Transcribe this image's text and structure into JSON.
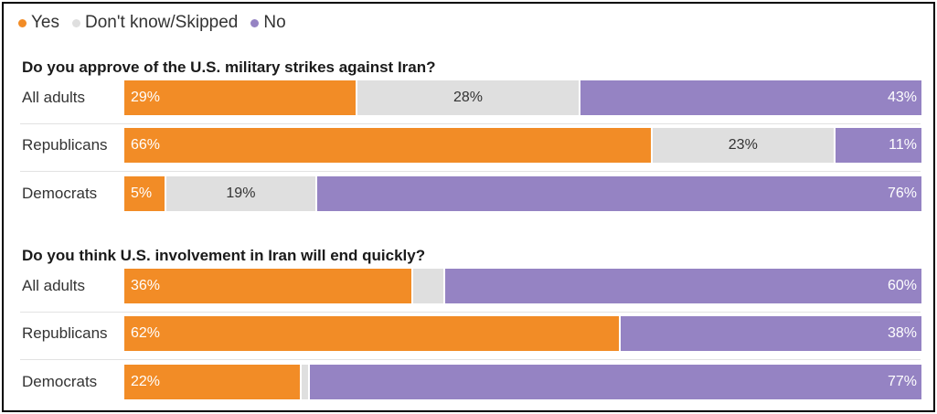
{
  "legend": [
    {
      "label": "Yes",
      "color": "#f28c26"
    },
    {
      "label": "Don't know/Skipped",
      "color": "#dfdfdf"
    },
    {
      "label": "No",
      "color": "#9583c3"
    }
  ],
  "chart_data": [
    {
      "type": "bar",
      "title": "Do you approve of the U.S. military strikes against Iran?",
      "categories": [
        "All adults",
        "Republicans",
        "Democrats"
      ],
      "series": [
        {
          "name": "Yes",
          "values": [
            29,
            66,
            5
          ],
          "labels": [
            "29%",
            "66%",
            "5%"
          ]
        },
        {
          "name": "Don't know/Skipped",
          "values": [
            28,
            23,
            19
          ],
          "labels": [
            "28%",
            "23%",
            "19%"
          ]
        },
        {
          "name": "No",
          "values": [
            43,
            11,
            76
          ],
          "labels": [
            "43%",
            "11%",
            "76%"
          ]
        }
      ],
      "stacked": true,
      "orientation": "horizontal",
      "xlim": [
        0,
        100
      ]
    },
    {
      "type": "bar",
      "title": "Do you think U.S. involvement in Iran will end quickly?",
      "categories": [
        "All adults",
        "Republicans",
        "Democrats"
      ],
      "series": [
        {
          "name": "Yes",
          "values": [
            36,
            62,
            22
          ],
          "labels": [
            "36%",
            "62%",
            "22%"
          ]
        },
        {
          "name": "Don't know/Skipped",
          "values": [
            4,
            0,
            1
          ],
          "labels": [
            "",
            "",
            ""
          ]
        },
        {
          "name": "No",
          "values": [
            60,
            38,
            77
          ],
          "labels": [
            "60%",
            "38%",
            "77%"
          ]
        }
      ],
      "stacked": true,
      "orientation": "horizontal",
      "xlim": [
        0,
        100
      ]
    }
  ]
}
